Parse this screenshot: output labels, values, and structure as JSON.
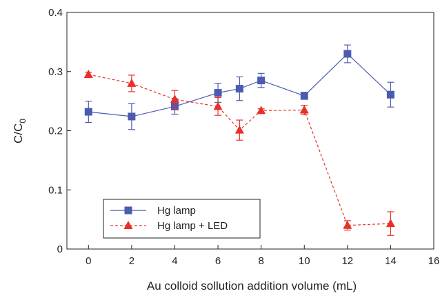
{
  "chart_data": {
    "type": "line",
    "title": "",
    "xlabel": "Au colloid sollution addition volume (mL)",
    "ylabel": {
      "main": "C/C",
      "sub": "0"
    },
    "xlim": [
      -1,
      16
    ],
    "ylim": [
      0,
      0.4
    ],
    "x_ticks": [
      0,
      2,
      4,
      6,
      8,
      10,
      12,
      14,
      16
    ],
    "y_ticks": [
      0,
      0.1,
      0.2,
      0.3,
      0.4
    ],
    "x_tick_labels": [
      "0",
      "2",
      "4",
      "6",
      "8",
      "10",
      "12",
      "14",
      "16"
    ],
    "y_tick_labels": [
      "0",
      "0.1",
      "0.2",
      "0.3",
      "0.4"
    ],
    "grid": false,
    "legend_position": "bottom-left",
    "series": [
      {
        "name": "Hg lamp",
        "color": "#4a5bb0",
        "marker": "square",
        "line_style": "solid",
        "x": [
          0,
          2,
          4,
          6,
          7,
          8,
          10,
          12,
          14
        ],
        "y": [
          0.232,
          0.224,
          0.241,
          0.264,
          0.271,
          0.285,
          0.259,
          0.33,
          0.261
        ],
        "err": [
          0.018,
          0.022,
          0.013,
          0.016,
          0.02,
          0.012,
          0.006,
          0.015,
          0.021
        ]
      },
      {
        "name": "Hg lamp + LED",
        "color": "#e8302a",
        "marker": "triangle",
        "line_style": "dashed",
        "x": [
          0,
          2,
          4,
          6,
          7,
          8,
          10,
          12,
          14
        ],
        "y": [
          0.295,
          0.28,
          0.253,
          0.241,
          0.201,
          0.234,
          0.235,
          0.04,
          0.043
        ],
        "err": [
          0.004,
          0.014,
          0.015,
          0.015,
          0.017,
          0.003,
          0.008,
          0.008,
          0.02
        ]
      }
    ]
  }
}
